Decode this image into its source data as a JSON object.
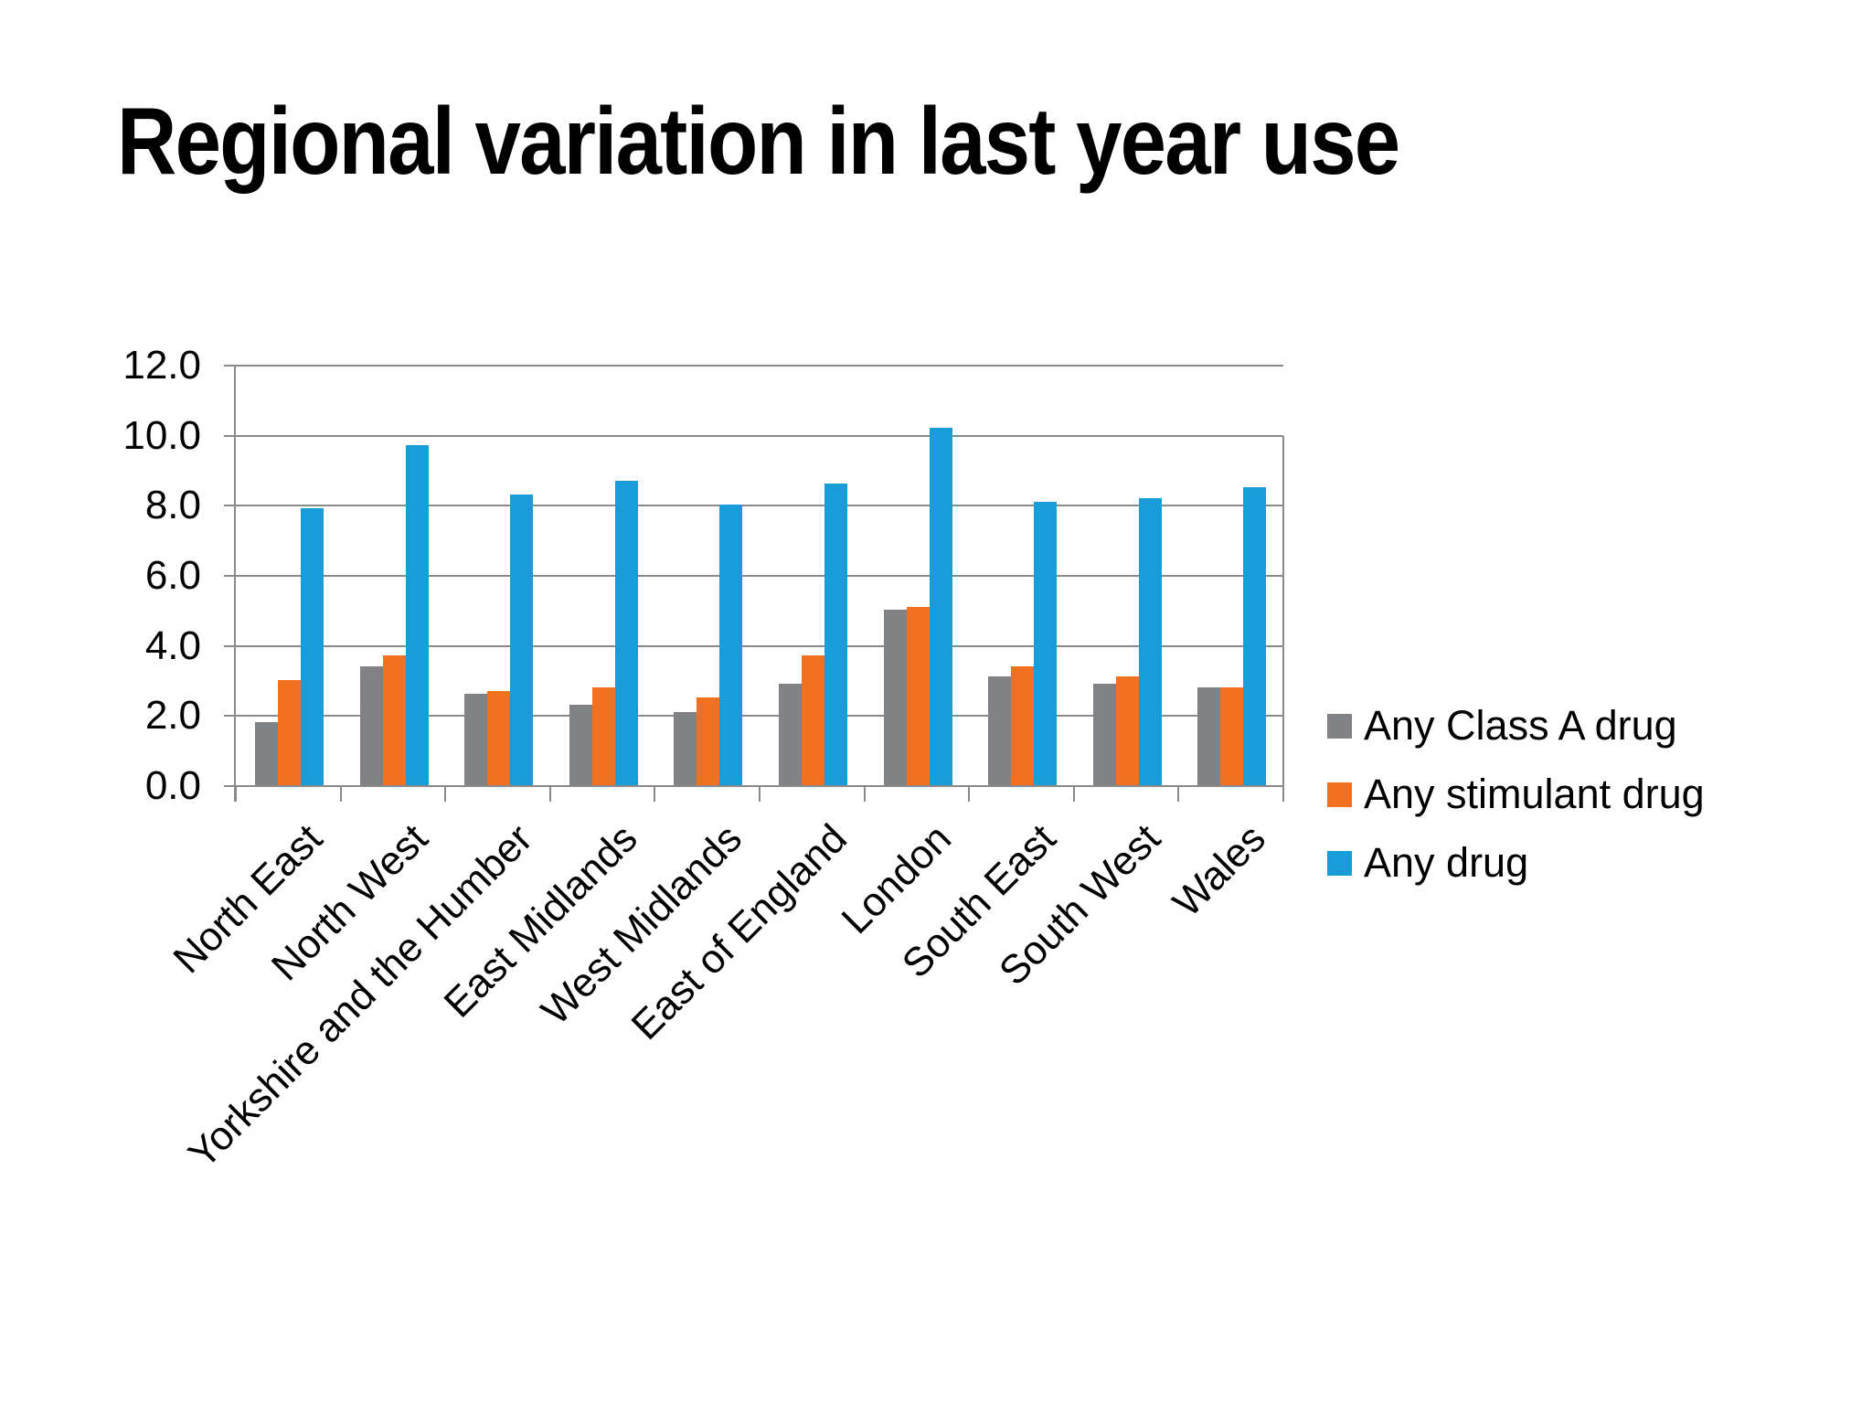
{
  "title": "Regional variation in last year use",
  "colors": {
    "background": "#ffffff",
    "gridline": "#8a8a8a",
    "axis": "#8a8a8a",
    "text": "#000000"
  },
  "chart_data": {
    "type": "bar",
    "title": "Regional variation in last year use",
    "xlabel": "",
    "ylabel": "",
    "ylim": [
      0,
      12
    ],
    "grid": true,
    "legend_position": "right",
    "y_ticks": [
      "12.0",
      "10.0",
      "8.0",
      "6.0",
      "4.0",
      "2.0",
      "0.0"
    ],
    "y_tick_values": [
      12,
      10,
      8,
      6,
      4,
      2,
      0
    ],
    "categories": [
      "North East",
      "North West",
      "Yorkshire and the Humber",
      "East Midlands",
      "West Midlands",
      "East of England",
      "London",
      "South East",
      "South West",
      "Wales"
    ],
    "series": [
      {
        "name": "Any Class A drug",
        "color": "#818285",
        "values": [
          1.8,
          3.4,
          2.6,
          2.3,
          2.1,
          2.9,
          5.0,
          3.1,
          2.9,
          2.8
        ]
      },
      {
        "name": "Any stimulant drug",
        "color": "#f37021",
        "values": [
          3.0,
          3.7,
          2.7,
          2.8,
          2.5,
          3.7,
          5.1,
          3.4,
          3.1,
          2.8
        ]
      },
      {
        "name": "Any drug",
        "color": "#189dd9",
        "values": [
          7.9,
          9.7,
          8.3,
          8.7,
          8.0,
          8.6,
          10.2,
          8.1,
          8.2,
          8.5
        ]
      }
    ]
  }
}
